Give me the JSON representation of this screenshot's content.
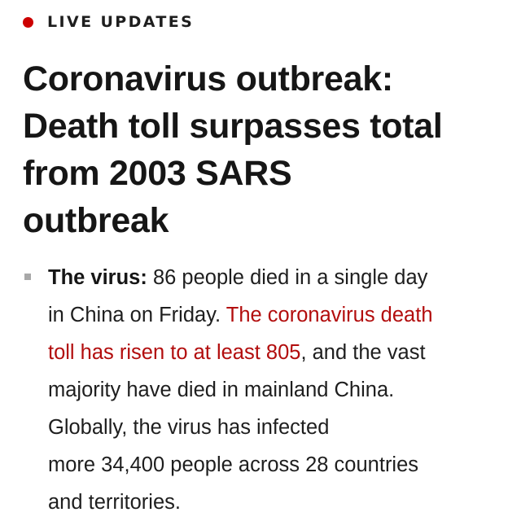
{
  "live": {
    "label": "LIVE UPDATES",
    "dot_color": "#cc0000"
  },
  "headline": {
    "lines": [
      "Coronavirus outbreak:",
      "Death toll surpasses total",
      "from 2003 SARS",
      "outbreak"
    ]
  },
  "bullet": {
    "lead": "The virus:",
    "line1_rest": " 86 people died in a single day",
    "line2_text": "in China on Friday. ",
    "link_part1": "The coronavirus death",
    "link_part2": "toll has risen to at least 805",
    "line3_rest": ", and the vast",
    "line4": "majority have died in mainland China.",
    "line5": "Globally, the virus has infected",
    "line6": "more 34,400 people across 28 countries",
    "line7": "and territories.",
    "link_color": "#b20d0d",
    "marker_color": "#a8a8a8"
  }
}
